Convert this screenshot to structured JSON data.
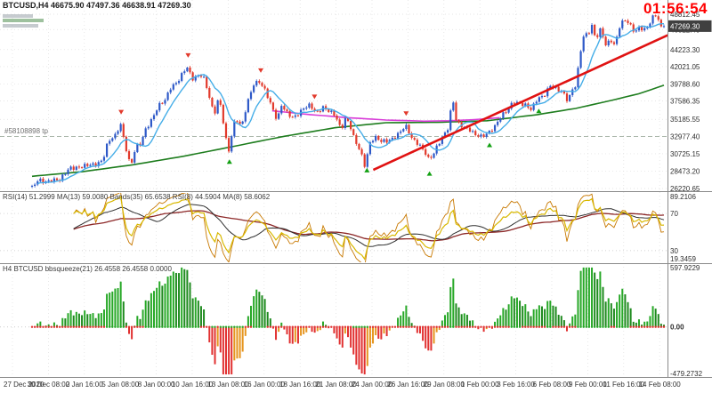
{
  "header": {
    "title": "BTCUSD,H4 46675.90 47497.36 46638.91 47269.30",
    "timer": "01:56:54"
  },
  "chart_data": {
    "type": "candlestick",
    "symbol": "BTCUSD",
    "timeframe": "H4",
    "open": "46675.90",
    "high": "47497.36",
    "low": "46638.91",
    "close": "47269.30",
    "current_price": "47269.30",
    "domain_days": 50,
    "price_range": {
      "max": 48812.45,
      "min": 26220.65
    },
    "price_axis_labels": [
      "48812.45",
      "46822.40",
      "44223.30",
      "42021.05",
      "39788.60",
      "37586.35",
      "35185.55",
      "32977.40",
      "30725.15",
      "28473.20",
      "26220.65"
    ],
    "time_axis_labels": [
      "27 Dec 2020",
      "30 Dec 08:00",
      "2 Jan 16:00",
      "5 Jan 08:00",
      "8 Jan 00:00",
      "10 Jan 16:00",
      "13 Jan 08:00",
      "16 Jan 00:00",
      "18 Jan 16:00",
      "21 Jan 08:00",
      "24 Jan 00:00",
      "26 Jan 16:00",
      "29 Jan 08:00",
      "1 Feb 00:00",
      "3 Feb 16:00",
      "6 Feb 08:00",
      "9 Feb 00:00",
      "11 Feb 16:00",
      "14 Feb 08:00"
    ],
    "price_path": [
      [
        0,
        26350
      ],
      [
        0.5,
        27250
      ],
      [
        1,
        27050
      ],
      [
        1.6,
        27450
      ],
      [
        2.2,
        27250
      ],
      [
        3,
        28950
      ],
      [
        4,
        29050
      ],
      [
        5,
        29350
      ],
      [
        5.6,
        30000
      ],
      [
        6,
        32200
      ],
      [
        6.6,
        33050
      ],
      [
        7,
        34700
      ],
      [
        7.35,
        32100
      ],
      [
        7.8,
        29000
      ],
      [
        8.2,
        31500
      ],
      [
        8.6,
        32050
      ],
      [
        9,
        34000
      ],
      [
        9.5,
        35300
      ],
      [
        10,
        36850
      ],
      [
        10.5,
        37550
      ],
      [
        11,
        39500
      ],
      [
        11.5,
        40050
      ],
      [
        12,
        41300
      ],
      [
        12.3,
        41900
      ],
      [
        12.65,
        40400
      ],
      [
        13,
        40800
      ],
      [
        13.5,
        41050
      ],
      [
        14,
        38200
      ],
      [
        14.4,
        35600
      ],
      [
        14.75,
        38050
      ],
      [
        15,
        36500
      ],
      [
        15.3,
        33100
      ],
      [
        15.55,
        30850
      ],
      [
        15.85,
        33600
      ],
      [
        16.1,
        35200
      ],
      [
        16.6,
        34300
      ],
      [
        17,
        37300
      ],
      [
        17.55,
        39750
      ],
      [
        18,
        39950
      ],
      [
        18.5,
        38800
      ],
      [
        19,
        36800
      ],
      [
        19.4,
        35050
      ],
      [
        19.75,
        37000
      ],
      [
        20.1,
        36050
      ],
      [
        20.6,
        35500
      ],
      [
        21,
        35850
      ],
      [
        21.5,
        36600
      ],
      [
        22,
        36950
      ],
      [
        22.5,
        36050
      ],
      [
        23,
        36850
      ],
      [
        23.5,
        36200
      ],
      [
        24,
        35600
      ],
      [
        24.45,
        33900
      ],
      [
        24.8,
        35400
      ],
      [
        25.1,
        34800
      ],
      [
        25.5,
        32500
      ],
      [
        26,
        30900
      ],
      [
        26.35,
        29100
      ],
      [
        26.7,
        32100
      ],
      [
        27.1,
        32950
      ],
      [
        27.6,
        32250
      ],
      [
        28.1,
        32350
      ],
      [
        28.6,
        32850
      ],
      [
        29.1,
        33500
      ],
      [
        29.55,
        34300
      ],
      [
        30.1,
        32600
      ],
      [
        30.6,
        32100
      ],
      [
        31.1,
        30900
      ],
      [
        31.4,
        29850
      ],
      [
        31.75,
        30550
      ],
      [
        32.1,
        31900
      ],
      [
        32.6,
        33300
      ],
      [
        33,
        34300
      ],
      [
        33.25,
        38200
      ],
      [
        33.6,
        34600
      ],
      [
        34.1,
        34300
      ],
      [
        34.6,
        34000
      ],
      [
        35.1,
        33100
      ],
      [
        35.6,
        32850
      ],
      [
        36.1,
        33500
      ],
      [
        36.6,
        34300
      ],
      [
        37.1,
        35500
      ],
      [
        37.6,
        36250
      ],
      [
        38.1,
        37600
      ],
      [
        38.6,
        37300
      ],
      [
        39.1,
        36900
      ],
      [
        39.5,
        36350
      ],
      [
        40,
        38000
      ],
      [
        40.5,
        38300
      ],
      [
        41,
        39500
      ],
      [
        41.5,
        39050
      ],
      [
        42,
        38800
      ],
      [
        42.4,
        37650
      ],
      [
        42.8,
        39200
      ],
      [
        43.05,
        39500
      ],
      [
        43.35,
        43500
      ],
      [
        43.65,
        46000
      ],
      [
        44,
        46400
      ],
      [
        44.3,
        47400
      ],
      [
        44.6,
        45600
      ],
      [
        45,
        46800
      ],
      [
        45.4,
        44750
      ],
      [
        45.8,
        45550
      ],
      [
        46.1,
        44850
      ],
      [
        46.55,
        47600
      ],
      [
        47,
        48000
      ],
      [
        47.3,
        47350
      ],
      [
        47.7,
        46550
      ],
      [
        48.05,
        47200
      ],
      [
        48.45,
        46850
      ],
      [
        48.8,
        47150
      ],
      [
        49.1,
        48600
      ],
      [
        49.45,
        48700
      ],
      [
        49.75,
        47150
      ],
      [
        50,
        47269
      ]
    ],
    "ma_green": [
      [
        0,
        27800
      ],
      [
        4,
        28400
      ],
      [
        8,
        29300
      ],
      [
        12,
        30400
      ],
      [
        16,
        31700
      ],
      [
        20,
        33000
      ],
      [
        24,
        34100
      ],
      [
        28,
        34750
      ],
      [
        32,
        34800
      ],
      [
        36,
        35000
      ],
      [
        40,
        35800
      ],
      [
        43,
        36600
      ],
      [
        46,
        37700
      ],
      [
        48,
        38500
      ],
      [
        50,
        39600
      ]
    ],
    "ma_magenta": [
      [
        19,
        36300
      ],
      [
        22,
        35800
      ],
      [
        25,
        35400
      ],
      [
        28,
        35100
      ],
      [
        31,
        34950
      ],
      [
        33,
        35000
      ],
      [
        35,
        35150
      ],
      [
        37,
        35400
      ]
    ],
    "trendline": {
      "days": [
        27.0,
        50.3
      ],
      "prices": [
        28640,
        46100
      ]
    },
    "order_line": {
      "label": "#58108898 tp",
      "price": 32977.4
    },
    "signals": [
      {
        "d": 7.05,
        "dir": "sell"
      },
      {
        "d": 12.35,
        "dir": "sell"
      },
      {
        "d": 18.1,
        "dir": "sell"
      },
      {
        "d": 22.35,
        "dir": "sell"
      },
      {
        "d": 29.6,
        "dir": "sell"
      },
      {
        "d": 15.62,
        "dir": "buy"
      },
      {
        "d": 26.5,
        "dir": "buy"
      },
      {
        "d": 31.45,
        "dir": "buy"
      },
      {
        "d": 36.2,
        "dir": "buy"
      },
      {
        "d": 40.1,
        "dir": "buy"
      }
    ],
    "colors": {
      "candle_up": "#2E59C8",
      "candle_down": "#E23A2C",
      "ma_fast": "#46AEE8",
      "ma_slow": "#1E7D1E",
      "ma_long": "#D83CD8",
      "trendline": "#E01212",
      "timer": "#FF0000",
      "grid": "#DEDEDE",
      "axis_text": "#2E2E2E",
      "price_tag_bg": "#404040",
      "price_tag_text": "#FFFFFF",
      "rsi_main": "#D8B800",
      "rsi_fast": "#C87800",
      "rsi_signal": "#303030",
      "rsi_bands": "#8C2727",
      "hist_up": "#27A827",
      "hist_up_soft": "#1E8A1E",
      "hist_down": "#E13030",
      "hist_down_soft": "#E6951E",
      "dot_on": "#27A827",
      "dot_off": "#E13030",
      "level_line": "#C4C4C4",
      "separator": "#8A8A8A",
      "order_line_color": "#8FA08F"
    }
  },
  "rsi_pane": {
    "label": "RSI(14) 51.2999   MA(13) 59.0080   Bands(35) 65.6538   RSI(8) 44.5904   MA(8) 58.6062",
    "max": 89.2106,
    "min": 19.3459,
    "levels": [
      70,
      30
    ],
    "axis_labels": [
      {
        "text": "89.2106",
        "value": 89.2106
      },
      {
        "text": "70",
        "value": 70
      },
      {
        "text": "30",
        "value": 30
      },
      {
        "text": "19.3459",
        "value": 19.3459
      }
    ]
  },
  "squeeze_pane": {
    "label": "H4 BTCUSD bbsqueeze(21) 26.4558 26.4558 0.0000",
    "max": 597.9229,
    "min": -479.2732,
    "axis_labels": [
      {
        "text": "597.9229",
        "value": 597.9229
      },
      {
        "text": "0.00",
        "value": 0
      },
      {
        "text": "-479.2732",
        "value": -479.2732
      }
    ]
  }
}
